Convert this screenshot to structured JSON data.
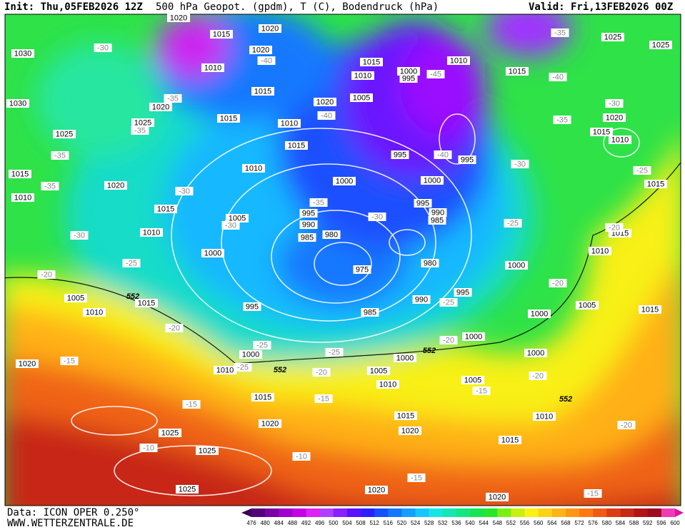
{
  "header": {
    "init": "Init: Thu,05FEB2026 12Z",
    "title": "500 hPa Geopot. (gpdm), T (C), Bodendruck (hPa)",
    "valid": "Valid: Fri,13FEB2026 00Z"
  },
  "footer": {
    "data": "Data: ICON OPER 0.250°",
    "site": "WWW.WETTERZENTRALE.DE"
  },
  "colorbar": {
    "labels": [
      476,
      480,
      484,
      488,
      492,
      496,
      500,
      504,
      508,
      512,
      516,
      520,
      524,
      528,
      532,
      536,
      540,
      544,
      548,
      552,
      556,
      560,
      564,
      568,
      572,
      576,
      580,
      584,
      588,
      592,
      596,
      600
    ],
    "colors": [
      "#3a0058",
      "#55007a",
      "#7a00a8",
      "#a000cc",
      "#c400e6",
      "#de20f0",
      "#b040ff",
      "#8a20ff",
      "#5a10ff",
      "#2a20ff",
      "#1450ff",
      "#1478ff",
      "#14a0ff",
      "#14c8ff",
      "#14e6e6",
      "#14e6b4",
      "#14e682",
      "#14e650",
      "#28e628",
      "#78f014",
      "#c8f014",
      "#fff014",
      "#ffd214",
      "#ffb414",
      "#ff9614",
      "#ff7814",
      "#f05a14",
      "#dc3c14",
      "#c82814",
      "#b41414",
      "#a00a1e",
      "#f03cb4",
      "#dc14a0"
    ]
  },
  "map": {
    "pressure_labels": [
      "1020",
      "1015",
      "1020",
      "1020",
      "1010",
      "1030",
      "1030",
      "1025",
      "1020",
      "1025",
      "1015",
      "1015",
      "1010",
      "1015",
      "1010",
      "1015",
      "1020",
      "1010",
      "1015",
      "1010",
      "1005",
      "1000",
      "1000",
      "1005",
      "1010",
      "1015",
      "1020",
      "1000",
      "995",
      "1010",
      "1015",
      "1025",
      "1025",
      "1020",
      "1015",
      "1010",
      "995",
      "995",
      "1000",
      "995",
      "990",
      "985",
      "995",
      "990",
      "985",
      "980",
      "975",
      "980",
      "990",
      "995",
      "985",
      "995",
      "1000",
      "1010",
      "1005",
      "1010",
      "1015",
      "1020",
      "1000",
      "1005",
      "1010",
      "1000",
      "1000",
      "1000",
      "1005",
      "1000",
      "1015",
      "1010",
      "1015",
      "1015",
      "1005",
      "1015",
      "1020",
      "1015",
      "1020",
      "1010",
      "1015",
      "1025",
      "1025",
      "1025",
      "1020",
      "1020"
    ],
    "temperature_labels": [
      "-30",
      "-40",
      "-35",
      "-35",
      "-35",
      "-35",
      "-30",
      "-30",
      "-30",
      "-35",
      "-30",
      "-40",
      "-45",
      "-40",
      "-35",
      "-30",
      "-35",
      "-40",
      "-30",
      "-25",
      "-25",
      "-20",
      "-25",
      "-20",
      "-20",
      "-15",
      "-25",
      "-25",
      "-20",
      "-25",
      "-20",
      "-25",
      "-20",
      "-20",
      "-15",
      "-15",
      "-15",
      "-10",
      "-10",
      "-15",
      "-20",
      "-15"
    ],
    "geopotential_labels": [
      "552",
      "552",
      "552",
      "552"
    ]
  }
}
